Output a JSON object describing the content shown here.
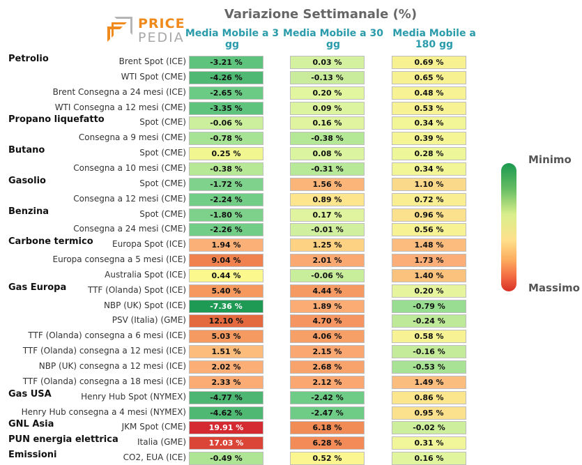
{
  "logo": {
    "word1": "PRICE",
    "word2": "PEDIA"
  },
  "chart_data": {
    "type": "table",
    "title": "Variazione Settimanale (%)",
    "columns": [
      "Media Mobile a 3 gg",
      "Media Mobile a 30 gg",
      "Media Mobile a 180 gg"
    ],
    "legend": {
      "min_label": "Minimo",
      "max_label": "Massimo"
    },
    "groups": [
      {
        "name": "Petrolio",
        "rows": [
          {
            "label": "Brent Spot (ICE)",
            "values": [
              "-3.21 %",
              "0.03 %",
              "0.69 %"
            ],
            "colors": [
              "#5ec47d",
              "#d4f1a0",
              "#f8f192"
            ]
          },
          {
            "label": "WTI Spot (CME)",
            "values": [
              "-4.26 %",
              "-0.13 %",
              "0.65 %"
            ],
            "colors": [
              "#4fb873",
              "#c9ec9c",
              "#f8f192"
            ]
          },
          {
            "label": "Brent Consegna a 24 mesi (ICE)",
            "values": [
              "-2.65 %",
              "0.20 %",
              "0.48 %"
            ],
            "colors": [
              "#6bcb85",
              "#e2f59f",
              "#f7f294"
            ]
          },
          {
            "label": "WTI Consegna a 12 mesi (CME)",
            "values": [
              "-3.35 %",
              "0.09 %",
              "0.53 %"
            ],
            "colors": [
              "#5ec47d",
              "#dcf49f",
              "#f7f294"
            ]
          }
        ]
      },
      {
        "name": "Propano liquefatto",
        "rows": [
          {
            "label": "Spot (CME)",
            "values": [
              "-0.06 %",
              "0.16 %",
              "0.34 %"
            ],
            "colors": [
              "#cbef9d",
              "#e0f49f",
              "#f3f697"
            ]
          },
          {
            "label": "Consegna a 9 mesi (CME)",
            "values": [
              "-0.78 %",
              "-0.38 %",
              "0.39 %"
            ],
            "colors": [
              "#a7e394",
              "#b4e896",
              "#f5f596"
            ]
          }
        ]
      },
      {
        "name": "Butano",
        "rows": [
          {
            "label": "Spot (CME)",
            "values": [
              "0.25 %",
              "0.08 %",
              "0.28 %"
            ],
            "colors": [
              "#f2f690",
              "#dbf49f",
              "#eef69a"
            ]
          },
          {
            "label": "Consegna a 10 mesi (CME)",
            "values": [
              "-0.38 %",
              "-0.31 %",
              "0.34 %"
            ],
            "colors": [
              "#b6e896",
              "#b8e998",
              "#f3f697"
            ]
          }
        ]
      },
      {
        "name": "Gasolio",
        "rows": [
          {
            "label": "Spot (CME)",
            "values": [
              "-1.72 %",
              "1.56 %",
              "1.10 %"
            ],
            "colors": [
              "#7fd28b",
              "#fbb578",
              "#fbd98b"
            ]
          },
          {
            "label": "Consegna a 12 mesi (CME)",
            "values": [
              "-2.24 %",
              "0.89 %",
              "0.72 %"
            ],
            "colors": [
              "#72ce87",
              "#fde58d",
              "#f9ef92"
            ]
          }
        ]
      },
      {
        "name": "Benzina",
        "rows": [
          {
            "label": "Spot (CME)",
            "values": [
              "-1.80 %",
              "0.17 %",
              "0.96 %"
            ],
            "colors": [
              "#7dd18a",
              "#e0f49f",
              "#fbe18d"
            ]
          },
          {
            "label": "Consegna a 24 mesi (CME)",
            "values": [
              "-2.26 %",
              "-0.01 %",
              "0.56 %"
            ],
            "colors": [
              "#72ce87",
              "#d1f09f",
              "#f7f294"
            ]
          }
        ]
      },
      {
        "name": "Carbone termico",
        "rows": [
          {
            "label": "Europa Spot (ICE)",
            "values": [
              "1.94 %",
              "1.25 %",
              "1.48 %"
            ],
            "colors": [
              "#fbb077",
              "#fdd282",
              "#fbbc7d"
            ]
          },
          {
            "label": "Europa consegna a 5 mesi (ICE)",
            "values": [
              "9.04 %",
              "2.01 %",
              "1.73 %"
            ],
            "colors": [
              "#f08250",
              "#fba973",
              "#fbae77"
            ]
          },
          {
            "label": "Australia Spot (ICE)",
            "values": [
              "0.44 %",
              "-0.06 %",
              "1.40 %"
            ],
            "colors": [
              "#fbf98d",
              "#c8ee9c",
              "#fbc27e"
            ]
          }
        ]
      },
      {
        "name": "Gas Europa",
        "rows": [
          {
            "label": "TTF (Olanda) Spot (ICE)",
            "values": [
              "5.40 %",
              "4.44 %",
              "0.20 %"
            ],
            "colors": [
              "#f5995f",
              "#f69a63",
              "#e6f59d"
            ]
          },
          {
            "label": "NBP (UK) Spot (ICE)",
            "values": [
              "-7.36 %",
              "1.89 %",
              "-0.79 %"
            ],
            "colors": [
              "#1f9a55",
              "#fbac74",
              "#98dd91"
            ]
          },
          {
            "label": "PSV (Italia) (GME)",
            "values": [
              "12.10 %",
              "4.70 %",
              "-0.24 %"
            ],
            "colors": [
              "#e36a3e",
              "#f59562",
              "#bde998"
            ]
          },
          {
            "label": "TTF (Olanda) consegna a 6 mesi (ICE)",
            "values": [
              "5.03 %",
              "4.06 %",
              "0.58 %"
            ],
            "colors": [
              "#f59b61",
              "#f69f66",
              "#f7f294"
            ]
          },
          {
            "label": "TTF (Olanda) consegna a 12 mesi (ICE)",
            "values": [
              "1.51 %",
              "2.15 %",
              "-0.16 %"
            ],
            "colors": [
              "#fcbc7c",
              "#fba772",
              "#c3eb9a"
            ]
          },
          {
            "label": "NBP (UK) consegna a 12 mesi (ICE)",
            "values": [
              "2.02 %",
              "2.68 %",
              "-0.53 %"
            ],
            "colors": [
              "#fbae76",
              "#f9a36c",
              "#a8e395"
            ]
          },
          {
            "label": "TTF (Olanda) consegna a 18 mesi (ICE)",
            "values": [
              "2.33 %",
              "2.12 %",
              "1.49 %"
            ],
            "colors": [
              "#fbab74",
              "#fba772",
              "#fbbd7d"
            ]
          }
        ]
      },
      {
        "name": "Gas USA",
        "rows": [
          {
            "label": "Henry Hub Spot (NYMEX)",
            "values": [
              "-4.77 %",
              "-2.42 %",
              "0.86 %"
            ],
            "colors": [
              "#4db672",
              "#6ecc86",
              "#fbe58d"
            ]
          },
          {
            "label": "Henry Hub consegna a 4 mesi (NYMEX)",
            "values": [
              "-4.62 %",
              "-2.47 %",
              "0.95 %"
            ],
            "colors": [
              "#4fb873",
              "#6ecc86",
              "#fbe18d"
            ]
          }
        ]
      },
      {
        "name": "GNL Asia",
        "rows": [
          {
            "label": "JKM Spot (CME)",
            "values": [
              "19.91 %",
              "6.18 %",
              "-0.02 %"
            ],
            "colors": [
              "#d42a31",
              "#f28c57",
              "#cdef9d"
            ]
          }
        ]
      },
      {
        "name": "PUN energia elettrica",
        "rows": [
          {
            "label": "Italia (GME)",
            "values": [
              "17.03 %",
              "6.28 %",
              "0.31 %"
            ],
            "colors": [
              "#db4538",
              "#f28b57",
              "#f0f699"
            ]
          }
        ]
      },
      {
        "name": "Emissioni",
        "rows": [
          {
            "label": "CO2, EUA (ICE)",
            "values": [
              "-0.49 %",
              "0.52 %",
              "0.16 %"
            ],
            "colors": [
              "#aee594",
              "#fbf68f",
              "#e1f59f"
            ]
          }
        ]
      }
    ]
  }
}
